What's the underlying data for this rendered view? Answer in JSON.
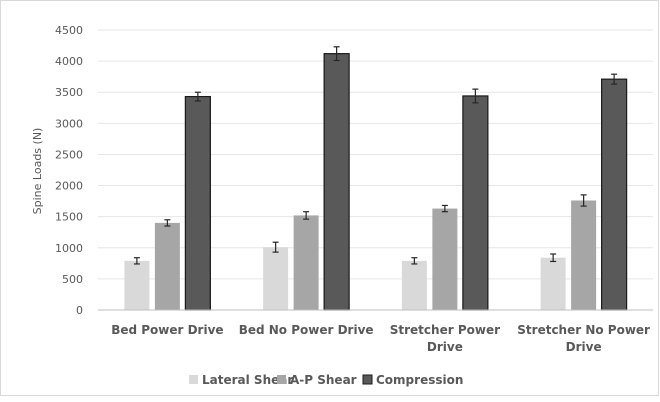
{
  "chart_data": {
    "type": "bar",
    "title": "",
    "xlabel": "",
    "ylabel": "Spine Loads (N)",
    "ylim": [
      0,
      4500
    ],
    "yticks": [
      0,
      500,
      1000,
      1500,
      2000,
      2500,
      3000,
      3500,
      4000,
      4500
    ],
    "grid": true,
    "legend_position": "bottom",
    "categories": [
      [
        "Bed Power Drive"
      ],
      [
        "Bed No Power Drive"
      ],
      [
        "Stretcher Power",
        "Drive"
      ],
      [
        "Stretcher No Power",
        "Drive"
      ]
    ],
    "series": [
      {
        "name": "Lateral Shear",
        "color": "#d9d9d9",
        "values": [
          790,
          1010,
          790,
          840
        ],
        "errors": [
          50,
          80,
          50,
          60
        ]
      },
      {
        "name": "A-P Shear",
        "color": "#a6a6a6",
        "values": [
          1400,
          1520,
          1630,
          1760
        ],
        "errors": [
          50,
          60,
          50,
          90
        ]
      },
      {
        "name": "Compression",
        "color": "#595959",
        "values": [
          3430,
          4120,
          3440,
          3710
        ],
        "errors": [
          70,
          110,
          110,
          80
        ]
      }
    ]
  }
}
